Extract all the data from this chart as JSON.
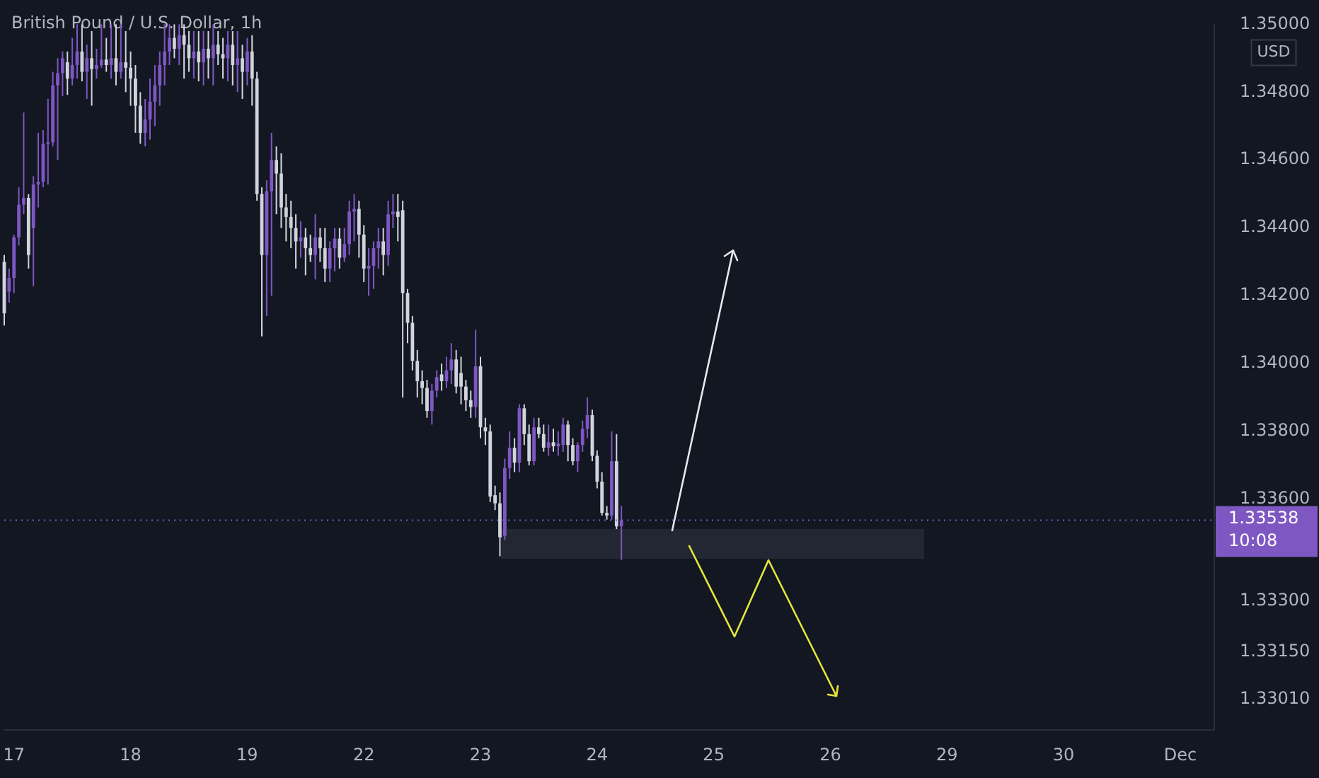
{
  "chart_data": {
    "type": "candlestick",
    "title": "British Pound / U.S. Dollar, 1h",
    "annotations": [
      "USD"
    ],
    "colors": [
      "#d1d4dc",
      "#7e57c2",
      "#7e57c2",
      "#7e57c2",
      "#7e57c2",
      "#d1d4dc",
      "#7e57c2",
      "#7e57c2",
      "#7e57c2",
      "#7e57c2",
      "#7e57c2",
      "#7e57c2",
      "#7e57c2",
      "#d1d4dc",
      "#7e57c2",
      "#7e57c2",
      "#d1d4dc",
      "#7e57c2",
      "#d1d4dc",
      "#7e57c2",
      "#7e57c2",
      "#d1d4dc",
      "#7e57c2",
      "#d1d4dc",
      "#7e57c2",
      "#d1d4dc",
      "#d1d4dc",
      "#d1d4dc",
      "#d1d4dc",
      "#7e57c2",
      "#7e57c2",
      "#7e57c2",
      "#7e57c2",
      "#7e57c2",
      "#7e57c2",
      "#d1d4dc",
      "#7e57c2",
      "#d1d4dc",
      "#d1d4dc",
      "#7e57c2",
      "#d1d4dc",
      "#7e57c2",
      "#d1d4dc",
      "#7e57c2",
      "#d1d4dc",
      "#d1d4dc",
      "#7e57c2",
      "#d1d4dc",
      "#7e57c2",
      "#d1d4dc",
      "#7e57c2",
      "#d1d4dc",
      "#d1d4dc",
      "#d1d4dc",
      "#7e57c2",
      "#7e57c2",
      "#d1d4dc",
      "#d1d4dc",
      "#d1d4dc",
      "#d1d4dc",
      "#d1d4dc",
      "#7e57c2",
      "#d1d4dc",
      "#d1d4dc",
      "#7e57c2",
      "#d1d4dc",
      "#d1d4dc",
      "#7e57c2",
      "#7e57c2",
      "#d1d4dc",
      "#7e57c2",
      "#7e57c2",
      "#7e57c2",
      "#d1d4dc",
      "#d1d4dc",
      "#7e57c2",
      "#7e57c2",
      "#7e57c2",
      "#d1d4dc",
      "#7e57c2",
      "#7e57c2",
      "#d1d4dc",
      "#d1d4dc",
      "#d1d4dc",
      "#d1d4dc",
      "#d1d4dc",
      "#d1d4dc",
      "#d1d4dc",
      "#7e57c2",
      "#7e57c2",
      "#d1d4dc",
      "#7e57c2",
      "#7e57c2",
      "#d1d4dc",
      "#d1d4dc",
      "#d1d4dc",
      "#d1d4dc",
      "#7e57c2",
      "#d1d4dc",
      "#d1d4dc",
      "#d1d4dc",
      "#d1d4dc",
      "#d1d4dc",
      "#7e57c2",
      "#7e57c2",
      "#d1d4dc",
      "#7e57c2",
      "#d1d4dc",
      "#d1d4dc",
      "#7e57c2",
      "#d1d4dc",
      "#d1d4dc",
      "#7e57c2",
      "#d1d4dc",
      "#7e57c2",
      "#7e57c2",
      "#d1d4dc",
      "#d1d4dc",
      "#7e57c2",
      "#7e57c2",
      "#7e57c2",
      "#d1d4dc",
      "#d1d4dc",
      "#d1d4dc",
      "#d1d4dc",
      "#7e57c2",
      "#d1d4dc",
      "#7e57c2",
      null,
      null,
      null,
      null,
      null,
      null,
      null,
      null,
      null,
      null,
      null,
      null,
      null,
      null,
      null,
      null,
      null,
      null,
      null,
      null,
      null,
      null,
      null,
      null,
      null,
      null,
      null,
      null,
      null,
      null,
      null,
      null,
      null,
      null,
      null,
      null,
      null,
      null,
      null,
      null,
      null,
      null,
      null,
      null,
      null,
      null,
      null,
      null,
      null,
      null,
      null,
      null,
      null,
      null,
      null,
      null,
      null,
      null,
      null,
      null,
      null,
      null,
      null,
      null,
      null,
      null,
      null,
      null,
      null,
      null,
      null,
      null,
      null,
      null,
      null,
      null,
      null,
      null,
      null,
      null,
      null,
      null,
      null,
      null,
      null,
      null,
      null,
      null,
      null,
      null,
      null,
      null,
      null,
      null,
      null,
      null,
      null,
      null,
      null,
      null,
      null,
      null,
      null,
      null,
      null,
      null,
      null,
      null,
      null,
      null,
      null,
      null,
      null,
      null,
      null,
      null,
      null,
      null,
      null,
      null,
      null,
      null
    ],
    "categories": [
      null,
      null,
      "17",
      null,
      null,
      null,
      null,
      null,
      null,
      null,
      null,
      null,
      null,
      null,
      null,
      null,
      null,
      null,
      null,
      null,
      null,
      null,
      null,
      null,
      null,
      null,
      "18",
      null,
      null,
      null,
      null,
      null,
      null,
      null,
      null,
      null,
      null,
      null,
      null,
      null,
      null,
      null,
      null,
      null,
      null,
      null,
      null,
      null,
      null,
      null,
      "19",
      null,
      null,
      null,
      null,
      null,
      null,
      null,
      null,
      null,
      null,
      null,
      null,
      null,
      null,
      null,
      null,
      null,
      null,
      null,
      null,
      null,
      null,
      null,
      "22",
      null,
      null,
      null,
      null,
      null,
      null,
      null,
      null,
      null,
      null,
      null,
      null,
      null,
      null,
      null,
      null,
      null,
      null,
      null,
      null,
      null,
      null,
      null,
      "23",
      null,
      null,
      null,
      null,
      null,
      null,
      null,
      null,
      null,
      null,
      null,
      null,
      null,
      null,
      null,
      null,
      null,
      null,
      null,
      null,
      null,
      null,
      null,
      "24",
      null,
      null,
      null,
      null,
      null,
      null,
      null,
      null,
      null,
      null,
      null,
      null,
      null,
      null,
      null,
      null,
      null,
      null,
      null,
      null,
      null,
      null,
      null,
      "25",
      null,
      null,
      null,
      null,
      null,
      null,
      null,
      null,
      null,
      null,
      null,
      null,
      null,
      null,
      null,
      null,
      null,
      null,
      null,
      null,
      null,
      null,
      null,
      "26",
      null,
      null,
      null,
      null,
      null,
      null,
      null,
      null,
      null,
      null,
      null,
      null,
      null,
      null,
      null,
      null,
      null,
      null,
      null,
      null,
      null,
      null,
      null,
      "29",
      null,
      null,
      null,
      null,
      null,
      null,
      null,
      null,
      null,
      null,
      null,
      null,
      null,
      null,
      null,
      null,
      null,
      null,
      null,
      null,
      null,
      null,
      null,
      "30",
      null,
      null,
      null,
      null,
      null,
      null,
      null,
      null,
      null,
      null,
      null,
      null,
      null,
      null,
      null,
      null,
      null,
      null,
      null,
      null,
      null,
      null,
      null,
      "Dec",
      null,
      null,
      null,
      null,
      null,
      null,
      null
    ],
    "ohlc": [
      [
        1.343,
        1.3432,
        1.34112,
        1.34148
      ],
      [
        1.34212,
        1.3428,
        1.3418,
        1.34252
      ],
      [
        1.34252,
        1.3438,
        1.34208,
        1.34372
      ],
      [
        1.34372,
        1.3452,
        1.34348,
        1.34468
      ],
      [
        1.34468,
        1.3474,
        1.3444,
        1.34488
      ],
      [
        1.34488,
        1.345,
        1.3428,
        1.3432
      ],
      [
        1.344,
        1.34552,
        1.34228,
        1.34528
      ],
      [
        1.34528,
        1.3468,
        1.3446,
        1.34536
      ],
      [
        1.34536,
        1.34688,
        1.3452,
        1.34648
      ],
      [
        1.34648,
        1.3478,
        1.34528,
        1.34652
      ],
      [
        1.34652,
        1.3486,
        1.3464,
        1.3482
      ],
      [
        1.3482,
        1.349,
        1.346,
        1.34856
      ],
      [
        1.34856,
        1.3492,
        1.34788,
        1.349
      ],
      [
        1.34888,
        1.3492,
        1.34792,
        1.3484
      ],
      [
        1.3484,
        1.3496,
        1.3482,
        1.3488
      ],
      [
        1.3488,
        1.35,
        1.3484,
        1.3492
      ],
      [
        1.3492,
        1.35,
        1.34832,
        1.3486
      ],
      [
        1.3486,
        1.3494,
        1.3478,
        1.349
      ],
      [
        1.349,
        1.3498,
        1.3476,
        1.34868
      ],
      [
        1.34868,
        1.34928,
        1.3484,
        1.3488
      ],
      [
        1.3488,
        1.35,
        1.34872,
        1.34896
      ],
      [
        1.34896,
        1.3496,
        1.3486,
        1.3488
      ],
      [
        1.3488,
        1.35,
        1.3484,
        1.349
      ],
      [
        1.349,
        1.35,
        1.3482,
        1.3486
      ],
      [
        1.3486,
        1.35,
        1.3484,
        1.34888
      ],
      [
        1.34888,
        1.3498,
        1.348,
        1.34872
      ],
      [
        1.34872,
        1.3492,
        1.3476,
        1.3484
      ],
      [
        1.3484,
        1.3488,
        1.3468,
        1.3476
      ],
      [
        1.3476,
        1.348,
        1.34648,
        1.3468
      ],
      [
        1.3468,
        1.3478,
        1.3464,
        1.3472
      ],
      [
        1.3472,
        1.3484,
        1.3466,
        1.34772
      ],
      [
        1.34772,
        1.3488,
        1.347,
        1.3482
      ],
      [
        1.3482,
        1.3492,
        1.3476,
        1.3488
      ],
      [
        1.3488,
        1.35,
        1.3482,
        1.3492
      ],
      [
        1.3492,
        1.35,
        1.3488,
        1.3496
      ],
      [
        1.3496,
        1.35,
        1.349,
        1.34928
      ],
      [
        1.34928,
        1.35,
        1.3488,
        1.34968
      ],
      [
        1.34968,
        1.35,
        1.3484,
        1.3494
      ],
      [
        1.3494,
        1.3498,
        1.3486,
        1.349
      ],
      [
        1.349,
        1.3498,
        1.3484,
        1.3492
      ],
      [
        1.3492,
        1.3498,
        1.34832,
        1.34888
      ],
      [
        1.34888,
        1.3498,
        1.3482,
        1.34928
      ],
      [
        1.34928,
        1.3498,
        1.3484,
        1.349
      ],
      [
        1.349,
        1.35,
        1.3482,
        1.3494
      ],
      [
        1.3494,
        1.3498,
        1.3488,
        1.34912
      ],
      [
        1.34912,
        1.3496,
        1.3484,
        1.349
      ],
      [
        1.349,
        1.3498,
        1.34832,
        1.3494
      ],
      [
        1.3494,
        1.3498,
        1.3482,
        1.3488
      ],
      [
        1.3488,
        1.3498,
        1.348,
        1.349
      ],
      [
        1.349,
        1.3494,
        1.3478,
        1.3486
      ],
      [
        1.3486,
        1.3496,
        1.3482,
        1.3492
      ],
      [
        1.3492,
        1.34968,
        1.3476,
        1.3484
      ],
      [
        1.3484,
        1.3486,
        1.3448,
        1.345
      ],
      [
        1.345,
        1.3452,
        1.3408,
        1.3432
      ],
      [
        1.3432,
        1.3454,
        1.3414,
        1.34508
      ],
      [
        1.34508,
        1.3468,
        1.342,
        1.346
      ],
      [
        1.346,
        1.3464,
        1.3444,
        1.3456
      ],
      [
        1.3456,
        1.3462,
        1.344,
        1.3446
      ],
      [
        1.3446,
        1.345,
        1.3436,
        1.34432
      ],
      [
        1.34432,
        1.3448,
        1.3434,
        1.344
      ],
      [
        1.344,
        1.3444,
        1.3428,
        1.3436
      ],
      [
        1.3436,
        1.3442,
        1.34312,
        1.34372
      ],
      [
        1.34372,
        1.344,
        1.3426,
        1.3434
      ],
      [
        1.3434,
        1.3438,
        1.343,
        1.3432
      ],
      [
        1.3432,
        1.3444,
        1.34248,
        1.34372
      ],
      [
        1.34372,
        1.344,
        1.343,
        1.3434
      ],
      [
        1.3434,
        1.344,
        1.3424,
        1.3428
      ],
      [
        1.3428,
        1.3436,
        1.3424,
        1.3434
      ],
      [
        1.3434,
        1.344,
        1.34272,
        1.34368
      ],
      [
        1.34368,
        1.344,
        1.3428,
        1.34312
      ],
      [
        1.34312,
        1.344,
        1.343,
        1.34352
      ],
      [
        1.34352,
        1.3448,
        1.3432,
        1.34448
      ],
      [
        1.34448,
        1.345,
        1.3436,
        1.34456
      ],
      [
        1.34456,
        1.3448,
        1.34312,
        1.3438
      ],
      [
        1.3438,
        1.34408,
        1.3424,
        1.3428
      ],
      [
        1.3428,
        1.3434,
        1.342,
        1.34288
      ],
      [
        1.34288,
        1.3436,
        1.3422,
        1.3434
      ],
      [
        1.3434,
        1.344,
        1.3428,
        1.3436
      ],
      [
        1.3436,
        1.344,
        1.3426,
        1.3432
      ],
      [
        1.3432,
        1.3448,
        1.34288,
        1.3444
      ],
      [
        1.3444,
        1.345,
        1.344,
        1.34448
      ],
      [
        1.34448,
        1.345,
        1.3436,
        1.34432
      ],
      [
        1.34452,
        1.3448,
        1.339,
        1.34208
      ],
      [
        1.34208,
        1.3422,
        1.3406,
        1.3412
      ],
      [
        1.3412,
        1.3414,
        1.3398,
        1.34008
      ],
      [
        1.34008,
        1.3404,
        1.339,
        1.33948
      ],
      [
        1.33948,
        1.3398,
        1.3388,
        1.33928
      ],
      [
        1.33928,
        1.33952,
        1.3384,
        1.3386
      ],
      [
        1.3386,
        1.3394,
        1.3382,
        1.3392
      ],
      [
        1.3392,
        1.3398,
        1.339,
        1.3396
      ],
      [
        1.33968,
        1.34,
        1.3392,
        1.33948
      ],
      [
        1.33948,
        1.3402,
        1.33928,
        1.3398
      ],
      [
        1.3398,
        1.3406,
        1.3394,
        1.34012
      ],
      [
        1.34012,
        1.3404,
        1.33912,
        1.33932
      ],
      [
        1.33972,
        1.3402,
        1.3388,
        1.33932
      ],
      [
        1.33932,
        1.33952,
        1.3386,
        1.33892
      ],
      [
        1.33892,
        1.3392,
        1.3384,
        1.33872
      ],
      [
        1.33872,
        1.341,
        1.3384,
        1.33992
      ],
      [
        1.33992,
        1.3402,
        1.3378,
        1.33812
      ],
      [
        1.33812,
        1.3384,
        1.3376,
        1.338
      ],
      [
        1.338,
        1.3382,
        1.33592,
        1.33608
      ],
      [
        1.33612,
        1.3364,
        1.33568,
        1.33588
      ],
      [
        1.33588,
        1.3362,
        1.33432,
        1.33488
      ],
      [
        1.33492,
        1.3372,
        1.3348,
        1.33692
      ],
      [
        1.33692,
        1.338,
        1.3366,
        1.33752
      ],
      [
        1.33752,
        1.3378,
        1.3368,
        1.33708
      ],
      [
        1.33708,
        1.3388,
        1.3368,
        1.33868
      ],
      [
        1.33868,
        1.3388,
        1.3376,
        1.33792
      ],
      [
        1.33792,
        1.3382,
        1.337,
        1.33712
      ],
      [
        1.33712,
        1.3384,
        1.337,
        1.33812
      ],
      [
        1.33812,
        1.3384,
        1.3378,
        1.33792
      ],
      [
        1.33792,
        1.3382,
        1.3374,
        1.33752
      ],
      [
        1.33752,
        1.3382,
        1.33728,
        1.33768
      ],
      [
        1.33768,
        1.33808,
        1.3374,
        1.33756
      ],
      [
        1.33756,
        1.338,
        1.33728,
        1.33764
      ],
      [
        1.3376,
        1.3384,
        1.3374,
        1.3382
      ],
      [
        1.3382,
        1.33832,
        1.33712,
        1.3376
      ],
      [
        1.3376,
        1.3378,
        1.337,
        1.33712
      ],
      [
        1.33712,
        1.33768,
        1.3368,
        1.3376
      ],
      [
        1.3376,
        1.33832,
        1.3374,
        1.33808
      ],
      [
        1.33808,
        1.339,
        1.3378,
        1.33848
      ],
      [
        1.33848,
        1.33864,
        1.33712,
        1.33728
      ],
      [
        1.33728,
        1.33744,
        1.33632,
        1.33652
      ],
      [
        1.33652,
        1.3368,
        1.33552,
        1.3356
      ],
      [
        1.3356,
        1.3358,
        1.3354,
        1.33552
      ],
      [
        1.33552,
        1.338,
        1.3354,
        1.33712
      ],
      [
        1.33712,
        1.33792,
        1.33512,
        1.3352
      ],
      [
        1.3352,
        1.3358,
        1.3342,
        1.33538
      ],
      null,
      null,
      null,
      null,
      null,
      null,
      null,
      null,
      null,
      null,
      null,
      null,
      null,
      null,
      null,
      null,
      null,
      null,
      null,
      null,
      null,
      null,
      null,
      null,
      null,
      null,
      null,
      null,
      null,
      null,
      null,
      null,
      null,
      null,
      null,
      null,
      null,
      null,
      null,
      null,
      null,
      null,
      null,
      null,
      null,
      null,
      null,
      null,
      null,
      null,
      null,
      null,
      null,
      null,
      null,
      null,
      null,
      null,
      null,
      null,
      null,
      null,
      null,
      null,
      null,
      null,
      null,
      null,
      null,
      null,
      null,
      null,
      null,
      null,
      null,
      null,
      null,
      null,
      null,
      null,
      null,
      null,
      null,
      null,
      null,
      null,
      null,
      null,
      null,
      null,
      null,
      null,
      null,
      null,
      null,
      null,
      null,
      null,
      null,
      null,
      null,
      null,
      null,
      null,
      null,
      null,
      null,
      null,
      null,
      null,
      null,
      null,
      null,
      null,
      null,
      null,
      null,
      null,
      null,
      null,
      null,
      null
    ],
    "ylim": [
      1.3292,
      1.35
    ],
    "yticks": [
      {
        "value": 1.35,
        "label": "1.35000"
      },
      {
        "value": 1.348,
        "label": "1.34800"
      },
      {
        "value": 1.346,
        "label": "1.34600"
      },
      {
        "value": 1.344,
        "label": "1.34400"
      },
      {
        "value": 1.342,
        "label": "1.34200"
      },
      {
        "value": 1.34,
        "label": "1.34000"
      },
      {
        "value": 1.338,
        "label": "1.33800"
      },
      {
        "value": 1.336,
        "label": "1.33600"
      },
      {
        "value": 1.333,
        "label": "1.33300"
      },
      {
        "value": 1.3315,
        "label": "1.33150"
      },
      {
        "value": 1.3301,
        "label": "1.33010"
      }
    ],
    "ref_lines": [
      {
        "axis": "y",
        "value": 1.33538,
        "label": "1.33538 10:08",
        "color": "#7e57c2",
        "line_style": "dotted"
      }
    ]
  }
}
